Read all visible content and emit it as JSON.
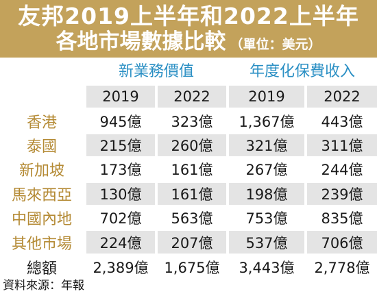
{
  "title": {
    "line1": "友邦2019上半年和2022上半年",
    "line2": "各地市場數據比較",
    "unit": "（單位：美元）"
  },
  "groups": {
    "new_business": "新業務價值",
    "premium": "年度化保費收入"
  },
  "years": [
    "2019",
    "2022",
    "2019",
    "2022"
  ],
  "rows": [
    {
      "region": "香港",
      "values": [
        "945億",
        "323億",
        "1,367億",
        "443億"
      ]
    },
    {
      "region": "泰國",
      "values": [
        "215億",
        "260億",
        "321億",
        "311億"
      ]
    },
    {
      "region": "新加坡",
      "values": [
        "173億",
        "161億",
        "267億",
        "244億"
      ]
    },
    {
      "region": "馬來西亞",
      "values": [
        "130億",
        "161億",
        "198億",
        "239億"
      ]
    },
    {
      "region": "中國內地",
      "values": [
        "702億",
        "563億",
        "753億",
        "835億"
      ]
    },
    {
      "region": "其他市場",
      "values": [
        "224億",
        "207億",
        "537億",
        "706億"
      ]
    },
    {
      "region": "總額",
      "values": [
        "2,389億",
        "1,675億",
        "3,443億",
        "2,778億"
      ]
    }
  ],
  "source": "資料來源：年報"
}
